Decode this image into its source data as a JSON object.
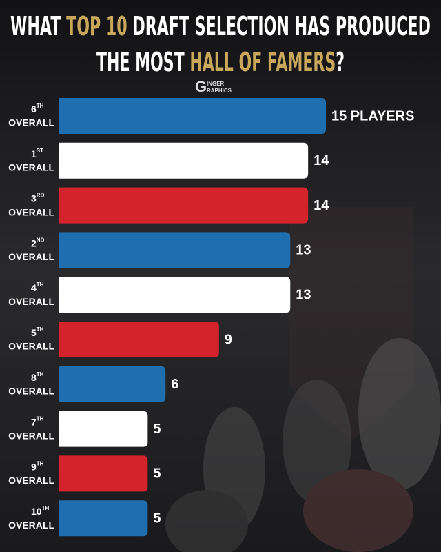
{
  "chart_data": {
    "type": "bar",
    "orientation": "horizontal",
    "title": [
      [
        {
          "text": "WHAT ",
          "highlight": false
        },
        {
          "text": "TOP 10",
          "highlight": true
        },
        {
          "text": " DRAFT SELECTION HAS PRODUCED",
          "highlight": false
        }
      ],
      [
        {
          "text": "THE MOST ",
          "highlight": false
        },
        {
          "text": "HALL OF FAMERS",
          "highlight": true
        },
        {
          "text": "?",
          "highlight": false
        }
      ]
    ],
    "highlight_color": "#c9a85c",
    "logo": {
      "letter": "G",
      "line1": "INGER",
      "line2": "RAPHICS"
    },
    "categories": [
      {
        "ordinal": "6",
        "suffix": "TH",
        "word": "OVERALL"
      },
      {
        "ordinal": "1",
        "suffix": "ST",
        "word": "OVERALL"
      },
      {
        "ordinal": "3",
        "suffix": "RD",
        "word": "OVERALL"
      },
      {
        "ordinal": "2",
        "suffix": "ND",
        "word": "OVERALL"
      },
      {
        "ordinal": "4",
        "suffix": "TH",
        "word": "OVERALL"
      },
      {
        "ordinal": "5",
        "suffix": "TH",
        "word": "OVERALL"
      },
      {
        "ordinal": "8",
        "suffix": "TH",
        "word": "OVERALL"
      },
      {
        "ordinal": "7",
        "suffix": "TH",
        "word": "OVERALL"
      },
      {
        "ordinal": "9",
        "suffix": "TH",
        "word": "OVERALL"
      },
      {
        "ordinal": "10",
        "suffix": "TH",
        "word": "OVERALL"
      }
    ],
    "values": [
      15,
      14,
      14,
      13,
      13,
      9,
      6,
      5,
      5,
      5
    ],
    "value_labels": [
      "15 PLAYERS",
      "14",
      "14",
      "13",
      "13",
      "9",
      "6",
      "5",
      "5",
      "5"
    ],
    "colors": [
      "#1f6fb0",
      "#ffffff",
      "#d4232b",
      "#1f6fb0",
      "#ffffff",
      "#d4232b",
      "#1f6fb0",
      "#ffffff",
      "#d4232b",
      "#1f6fb0"
    ]
  }
}
